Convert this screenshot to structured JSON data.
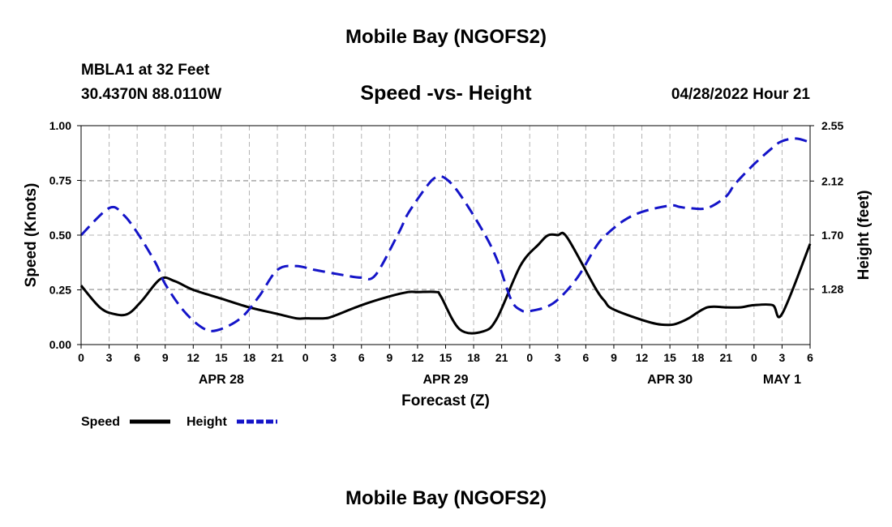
{
  "header": {
    "title": "Mobile Bay (NGOFS2)",
    "station": "MBLA1 at 32 Feet",
    "coords": "30.4370N  88.0110W",
    "subtitle": "Speed -vs- Height",
    "timestamp": "04/28/2022 Hour 21"
  },
  "footer": {
    "title": "Mobile Bay (NGOFS2)"
  },
  "chart_data": {
    "type": "line",
    "xlabel": "Forecast (Z)",
    "ylabel_left": "Speed (Knots)",
    "ylabel_right": "Height (feet)",
    "x_range_hours": [
      0,
      78
    ],
    "x_ticks": [
      "0",
      "3",
      "6",
      "9",
      "12",
      "15",
      "18",
      "21",
      "0",
      "3",
      "6",
      "9",
      "12",
      "15",
      "18",
      "21",
      "0",
      "3",
      "6",
      "9",
      "12",
      "15",
      "18",
      "21",
      "0",
      "3",
      "6"
    ],
    "day_labels": [
      {
        "hour": 15,
        "label": "APR 28"
      },
      {
        "hour": 39,
        "label": "APR 29"
      },
      {
        "hour": 63,
        "label": "APR 30"
      },
      {
        "hour": 75,
        "label": "MAY 1"
      }
    ],
    "y_left": {
      "range": [
        0,
        1.0
      ],
      "ticks": [
        "0.00",
        "0.25",
        "0.50",
        "0.75",
        "1.00"
      ]
    },
    "y_right": {
      "range": [
        0.85,
        2.55
      ],
      "ticks": [
        "1.28",
        "1.70",
        "2.12",
        "2.55"
      ]
    },
    "grid": true,
    "series": [
      {
        "name": "Speed",
        "axis": "left",
        "color": "#000000",
        "style": "solid",
        "x": [
          0,
          2,
          3.5,
          5,
          6.5,
          8.5,
          10,
          12,
          15,
          18,
          21,
          23,
          24,
          26,
          27,
          30,
          33,
          35,
          36,
          38,
          38.5,
          40.5,
          43,
          44.5,
          47,
          49,
          50,
          51,
          52,
          55,
          56,
          57,
          61,
          63,
          64,
          65,
          67,
          69,
          70.5,
          72,
          74,
          75,
          78
        ],
        "values": [
          0.27,
          0.17,
          0.14,
          0.14,
          0.2,
          0.3,
          0.29,
          0.25,
          0.21,
          0.17,
          0.14,
          0.12,
          0.12,
          0.12,
          0.13,
          0.18,
          0.22,
          0.24,
          0.24,
          0.24,
          0.22,
          0.07,
          0.06,
          0.12,
          0.36,
          0.46,
          0.5,
          0.5,
          0.49,
          0.26,
          0.2,
          0.16,
          0.1,
          0.09,
          0.1,
          0.12,
          0.17,
          0.17,
          0.17,
          0.18,
          0.18,
          0.14,
          0.46
        ]
      },
      {
        "name": "Height",
        "axis": "right",
        "color": "#1414c8",
        "style": "dashed",
        "x": [
          0,
          3,
          4.5,
          6,
          8,
          9,
          11,
          13,
          14.5,
          17,
          19,
          21,
          23,
          25,
          28,
          30,
          31.5,
          34,
          35,
          37,
          38,
          39,
          40.5,
          43,
          44.5,
          46,
          47,
          48,
          50.5,
          53,
          55,
          56,
          58,
          60,
          63,
          64,
          65,
          67,
          69,
          70,
          72,
          74,
          75,
          76.5,
          78
        ],
        "values": [
          1.7,
          1.91,
          1.86,
          1.72,
          1.48,
          1.32,
          1.11,
          0.98,
          0.96,
          1.05,
          1.22,
          1.43,
          1.46,
          1.43,
          1.39,
          1.37,
          1.39,
          1.72,
          1.87,
          2.08,
          2.15,
          2.14,
          2.02,
          1.73,
          1.51,
          1.2,
          1.12,
          1.11,
          1.17,
          1.36,
          1.6,
          1.69,
          1.81,
          1.88,
          1.93,
          1.92,
          1.91,
          1.91,
          2.0,
          2.1,
          2.25,
          2.38,
          2.43,
          2.45,
          2.42
        ]
      }
    ]
  },
  "legend": {
    "items": [
      {
        "label": "Speed",
        "color": "#000000",
        "style": "solid"
      },
      {
        "label": "Height",
        "color": "#1414c8",
        "style": "dashed"
      }
    ]
  }
}
